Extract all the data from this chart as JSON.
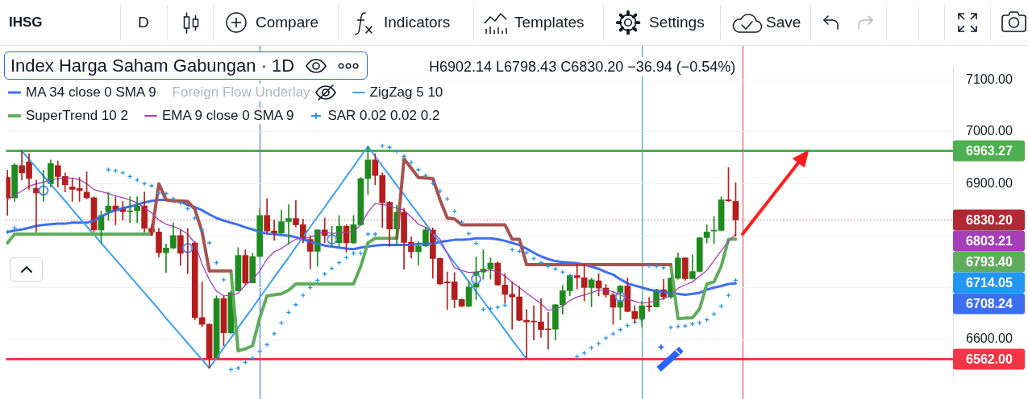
{
  "chart_data": {
    "type": "candlestick",
    "title": "Index Harga Saham Gabungan · 1D",
    "annotations": [
      "IHSG",
      "D",
      "Compare",
      "Indicators",
      "Templates",
      "Settings",
      "Save",
      "H6902.14 L6798.43 C6830.20 −36.94 (−0.54%)",
      "Foreign Flow Underlay",
      "6708.24",
      "6793.40",
      "6803.21",
      "6714.05"
    ],
    "categories": [
      null,
      null,
      null,
      null,
      null,
      null,
      null,
      null,
      null,
      null,
      null,
      null,
      null,
      null,
      null,
      null,
      null,
      null,
      null,
      null,
      null,
      null,
      null,
      null,
      null,
      null,
      null,
      null,
      null,
      null,
      null,
      null,
      null,
      null,
      null,
      null,
      null,
      null,
      null,
      null,
      null,
      null,
      null,
      null,
      null,
      null,
      null,
      null,
      null,
      null,
      null,
      null,
      null,
      null,
      null,
      null,
      null,
      null,
      null,
      null,
      null,
      null,
      null,
      null,
      null,
      null,
      null,
      null,
      null,
      null,
      null,
      null,
      null,
      null,
      null,
      null,
      null,
      null,
      null,
      null,
      null,
      null,
      null,
      null,
      null,
      null,
      null,
      null,
      null,
      null,
      null,
      null,
      null,
      null,
      null,
      null,
      null,
      null,
      null,
      null,
      null,
      null
    ],
    "ohlc": [
      [
        6912,
        6926,
        6839,
        6873
      ],
      [
        6873,
        6939,
        6866,
        6936
      ],
      [
        6935,
        6963,
        6907,
        6921
      ],
      [
        6942,
        6958,
        6889,
        6910
      ],
      [
        6891,
        6907,
        6807,
        6882
      ],
      [
        6882,
        6926,
        6866,
        6891
      ],
      [
        6900,
        6946,
        6894,
        6939
      ],
      [
        6935,
        6944,
        6894,
        6914
      ],
      [
        6914,
        6921,
        6884,
        6898
      ],
      [
        6894,
        6910,
        6866,
        6889
      ],
      [
        6891,
        6912,
        6866,
        6887
      ],
      [
        6884,
        6923,
        6871,
        6873
      ],
      [
        6873,
        6875,
        6807,
        6811
      ],
      [
        6811,
        6848,
        6786,
        6839
      ],
      [
        6846,
        6884,
        6830,
        6857
      ],
      [
        6857,
        6875,
        6821,
        6848
      ],
      [
        6853,
        6866,
        6830,
        6846
      ],
      [
        6846,
        6875,
        6825,
        6848
      ],
      [
        6848,
        6875,
        6825,
        6857
      ],
      [
        6857,
        6884,
        6807,
        6814
      ],
      [
        6814,
        6821,
        6800,
        6807
      ],
      [
        6807,
        6814,
        6759,
        6767
      ],
      [
        6767,
        6784,
        6729,
        6776
      ],
      [
        6776,
        6825,
        6775,
        6800
      ],
      [
        6800,
        6811,
        6743,
        6766
      ],
      [
        6782,
        6814,
        6727,
        6770
      ],
      [
        6786,
        6789,
        6638,
        6642
      ],
      [
        6642,
        6711,
        6624,
        6629
      ],
      [
        6629,
        6631,
        6545,
        6565
      ],
      [
        6565,
        6684,
        6563,
        6679
      ],
      [
        6679,
        6684,
        6588,
        6613
      ],
      [
        6613,
        6693,
        6611,
        6690
      ],
      [
        6694,
        6777,
        6693,
        6762
      ],
      [
        6762,
        6773,
        6706,
        6709
      ],
      [
        6709,
        6766,
        6709,
        6760
      ],
      [
        6760,
        6853,
        6759,
        6839
      ],
      [
        6839,
        6871,
        6805,
        6809
      ],
      [
        6809,
        6830,
        6791,
        6805
      ],
      [
        6805,
        6849,
        6802,
        6827
      ],
      [
        6827,
        6860,
        6784,
        6833
      ],
      [
        6833,
        6868,
        6817,
        6821
      ],
      [
        6821,
        6832,
        6786,
        6793
      ],
      [
        6793,
        6800,
        6736,
        6770
      ],
      [
        6770,
        6812,
        6741,
        6811
      ],
      [
        6811,
        6834,
        6786,
        6800
      ],
      [
        6797,
        6818,
        6779,
        6801
      ],
      [
        6786,
        6839,
        6779,
        6818
      ],
      [
        6818,
        6821,
        6768,
        6786
      ],
      [
        6786,
        6839,
        6785,
        6821
      ],
      [
        6821,
        6912,
        6820,
        6910
      ],
      [
        6910,
        6972,
        6879,
        6946
      ],
      [
        6946,
        6958,
        6898,
        6916
      ],
      [
        6916,
        6921,
        6816,
        6864
      ],
      [
        6864,
        6866,
        6779,
        6813
      ],
      [
        6813,
        6859,
        6782,
        6845
      ],
      [
        6845,
        6853,
        6735,
        6787
      ],
      [
        6787,
        6798,
        6757,
        6769
      ],
      [
        6769,
        6789,
        6743,
        6780
      ],
      [
        6780,
        6816,
        6779,
        6811
      ],
      [
        6811,
        6815,
        6718,
        6756
      ],
      [
        6756,
        6757,
        6705,
        6707
      ],
      [
        6711,
        6730,
        6658,
        6709
      ],
      [
        6711,
        6729,
        6661,
        6677
      ],
      [
        6677,
        6678,
        6663,
        6664
      ],
      [
        6664,
        6713,
        6663,
        6701
      ],
      [
        6701,
        6759,
        6677,
        6730
      ],
      [
        6730,
        6773,
        6716,
        6736
      ],
      [
        6736,
        6757,
        6716,
        6747
      ],
      [
        6747,
        6750,
        6704,
        6705
      ],
      [
        6705,
        6727,
        6670,
        6687
      ],
      [
        6687,
        6711,
        6620,
        6682
      ],
      [
        6682,
        6702,
        6636,
        6637
      ],
      [
        6637,
        6658,
        6562,
        6634
      ],
      [
        6635,
        6665,
        6599,
        6634
      ],
      [
        6634,
        6679,
        6604,
        6619
      ],
      [
        6620,
        6652,
        6581,
        6619
      ],
      [
        6620,
        6668,
        6599,
        6667
      ],
      [
        6667,
        6704,
        6649,
        6694
      ],
      [
        6694,
        6725,
        6684,
        6723
      ],
      [
        6723,
        6745,
        6697,
        6719
      ],
      [
        6719,
        6745,
        6674,
        6700
      ],
      [
        6700,
        6718,
        6663,
        6715
      ],
      [
        6713,
        6727,
        6684,
        6699
      ],
      [
        6699,
        6706,
        6681,
        6686
      ],
      [
        6686,
        6690,
        6629,
        6662
      ],
      [
        6662,
        6704,
        6638,
        6703
      ],
      [
        6703,
        6719,
        6653,
        6654
      ],
      [
        6654,
        6665,
        6633,
        6640
      ],
      [
        6640,
        6674,
        6624,
        6665
      ],
      [
        6665,
        6681,
        6654,
        6663
      ],
      [
        6663,
        6697,
        6662,
        6696
      ],
      [
        6696,
        6716,
        6677,
        6682
      ],
      [
        6682,
        6719,
        6679,
        6718
      ],
      [
        6718,
        6767,
        6716,
        6757
      ],
      [
        6757,
        6758,
        6714,
        6717
      ],
      [
        6717,
        6763,
        6716,
        6731
      ],
      [
        6731,
        6797,
        6730,
        6796
      ],
      [
        6796,
        6821,
        6786,
        6807
      ],
      [
        6809,
        6837,
        6785,
        6810
      ],
      [
        6810,
        6875,
        6809,
        6869
      ],
      [
        6869,
        6931,
        6866,
        6867
      ],
      [
        6866,
        6902.14,
        6798.43,
        6830.2
      ]
    ],
    "colors": [
      "#b41e1e",
      "#1e8b1e",
      "#b41e1e",
      "#b41e1e",
      "#b41e1e",
      "#1e8b1e",
      "#1e8b1e",
      "#b41e1e",
      "#b41e1e",
      "#b41e1e",
      "#b41e1e",
      "#b41e1e",
      "#b41e1e",
      "#1e8b1e",
      "#1e8b1e",
      "#b41e1e",
      "#b41e1e",
      "#1e8b1e",
      "#1e8b1e",
      "#b41e1e",
      "#b41e1e",
      "#b41e1e",
      "#1e8b1e",
      "#1e8b1e",
      "#b41e1e",
      "#b41e1e",
      "#b41e1e",
      "#b41e1e",
      "#b41e1e",
      "#1e8b1e",
      "#b41e1e",
      "#1e8b1e",
      "#1e8b1e",
      "#b41e1e",
      "#1e8b1e",
      "#1e8b1e",
      "#b41e1e",
      "#b41e1e",
      "#1e8b1e",
      "#1e8b1e",
      "#b41e1e",
      "#b41e1e",
      "#b41e1e",
      "#1e8b1e",
      "#b41e1e",
      "#1e8b1e",
      "#1e8b1e",
      "#b41e1e",
      "#1e8b1e",
      "#1e8b1e",
      "#1e8b1e",
      "#b41e1e",
      "#b41e1e",
      "#b41e1e",
      "#1e8b1e",
      "#b41e1e",
      "#b41e1e",
      "#1e8b1e",
      "#1e8b1e",
      "#b41e1e",
      "#b41e1e",
      "#b41e1e",
      "#b41e1e",
      "#b41e1e",
      "#1e8b1e",
      "#1e8b1e",
      "#1e8b1e",
      "#1e8b1e",
      "#b41e1e",
      "#b41e1e",
      "#b41e1e",
      "#b41e1e",
      "#b41e1e",
      "#b41e1e",
      "#b41e1e",
      "#b41e1e",
      "#1e8b1e",
      "#1e8b1e",
      "#1e8b1e",
      "#b41e1e",
      "#b41e1e",
      "#1e8b1e",
      "#b41e1e",
      "#b41e1e",
      "#b41e1e",
      "#1e8b1e",
      "#b41e1e",
      "#b41e1e",
      "#1e8b1e",
      "#b41e1e",
      "#1e8b1e",
      "#b41e1e",
      "#1e8b1e",
      "#1e8b1e",
      "#b41e1e",
      "#1e8b1e",
      "#1e8b1e",
      "#1e8b1e",
      "#1e8b1e",
      "#1e8b1e",
      "#b41e1e",
      "#b41e1e"
    ],
    "series": [
      {
        "name": "MA 34 close 0 SMA 9",
        "type": "line",
        "color": "#3d6ff5",
        "values": [
          6807,
          6810,
          6812,
          6815,
          6819,
          6821,
          6822,
          6823,
          6823,
          6825,
          6825,
          6825,
          6829,
          6837,
          6844,
          6849,
          6853,
          6856,
          6860,
          6864,
          6867,
          6869,
          6869,
          6867,
          6866,
          6859,
          6855,
          6849,
          6841,
          6834,
          6829,
          6825,
          6821,
          6816,
          6812,
          6807,
          6804,
          6803,
          6801,
          6800,
          6797,
          6793,
          6788,
          6785,
          6781,
          6779,
          6777,
          6775,
          6774,
          6777,
          6779,
          6781,
          6782,
          6782,
          6782,
          6782,
          6782,
          6784,
          6784,
          6785,
          6788,
          6790,
          6792,
          6792,
          6793,
          6795,
          6795,
          6795,
          6793,
          6790,
          6786,
          6782,
          6775,
          6767,
          6760,
          6755,
          6751,
          6749,
          6748,
          6747,
          6744,
          6740,
          6736,
          6730,
          6725,
          6716,
          6708,
          6704,
          6700,
          6696,
          6693,
          6692,
          6689,
          6688,
          6686,
          6688,
          6690,
          6696,
          6700,
          6703,
          6707,
          6708.24
        ]
      },
      {
        "name": "ZigZag 5 10",
        "type": "line",
        "color": "#3aa0f0",
        "values": [
          null,
          null,
          6963,
          6947,
          6931,
          6915,
          6899,
          6883,
          6867,
          6850,
          6834,
          6818,
          6802,
          6786,
          6770,
          6754,
          6738,
          6722,
          6706,
          6690,
          6674,
          6658,
          6641,
          6625,
          6609,
          6593,
          6577,
          6561,
          6545,
          6564,
          6584,
          6603,
          6623,
          6642,
          6661,
          6681,
          6700,
          6720,
          6739,
          6758,
          6778,
          6797,
          6817,
          6836,
          6855,
          6875,
          6894,
          6914,
          6933,
          6953,
          6972,
          6953,
          6934,
          6916,
          6897,
          6879,
          6860,
          6842,
          6823,
          6804,
          6786,
          6767,
          6748,
          6730,
          6711,
          6693,
          6674,
          6655,
          6637,
          6618,
          6599,
          6581,
          6562,
          null,
          null,
          null,
          null,
          null,
          null,
          null,
          null,
          null,
          null,
          null,
          null,
          null,
          null,
          null,
          null,
          null,
          null,
          null,
          null,
          null,
          null,
          null,
          null,
          null,
          null,
          null,
          null,
          null
        ]
      },
      {
        "name": "SuperTrend 10 2",
        "type": "line",
        "color": "#5fad5c",
        "values": [
          6786,
          6803,
          6803,
          6803,
          6803,
          6803,
          6803,
          6803,
          6803,
          6803,
          6803,
          6803,
          6803,
          6803,
          6803,
          6803,
          6803,
          6803,
          6803,
          6803,
          6803,
          null,
          null,
          null,
          null,
          null,
          null,
          null,
          null,
          null,
          null,
          6732,
          6578,
          6582,
          6588,
          6642,
          6684,
          6686,
          6688,
          6695,
          6707,
          6707,
          6707,
          6707,
          6707,
          6707,
          6707,
          6707,
          6707,
          6741,
          6786,
          6795,
          6795,
          6795,
          6795,
          null,
          null,
          null,
          null,
          null,
          null,
          null,
          null,
          null,
          null,
          null,
          null,
          null,
          null,
          null,
          null,
          null,
          null,
          null,
          null,
          null,
          null,
          null,
          null,
          null,
          null,
          null,
          null,
          null,
          null,
          null,
          null,
          null,
          null,
          null,
          null,
          null,
          6744,
          6640,
          6641,
          6642,
          6659,
          6707,
          6711,
          6741,
          6793,
          6793.4
        ]
      },
      {
        "type": "line",
        "color": "#a65350",
        "values": [
          null,
          null,
          null,
          null,
          null,
          null,
          null,
          null,
          null,
          null,
          null,
          null,
          null,
          null,
          null,
          null,
          null,
          null,
          null,
          null,
          6803,
          6900,
          6869,
          6867,
          6867,
          6866,
          6851,
          6807,
          6732,
          6732,
          6732,
          6732,
          null,
          null,
          null,
          null,
          null,
          null,
          null,
          null,
          null,
          null,
          null,
          null,
          null,
          null,
          null,
          null,
          null,
          null,
          null,
          null,
          null,
          null,
          6795,
          6948,
          6930,
          6912,
          6911,
          6910,
          6869,
          6834,
          6832,
          6821,
          6821,
          6821,
          6821,
          6821,
          6821,
          6821,
          6793,
          6793,
          6744,
          6744,
          6744,
          6744,
          6744,
          6744,
          6744,
          6744,
          6744,
          6744,
          6744,
          6744,
          6744,
          6744,
          6744,
          6744,
          6744,
          6744,
          6744,
          6744,
          6744,
          null,
          null,
          null,
          null,
          null,
          null,
          null,
          null,
          null
        ]
      },
      {
        "name": "EMA 9 close 0 SMA 9",
        "type": "line",
        "color": "#a53fb9",
        "values": [
          6869,
          6878,
          6886,
          6895,
          6900,
          6903,
          6907,
          6910,
          6911,
          6911,
          6908,
          6900,
          6889,
          6885,
          6881,
          6877,
          6873,
          6869,
          6863,
          6854,
          6844,
          6830,
          6822,
          6818,
          6812,
          6803,
          6786,
          6745,
          6715,
          6693,
          6684,
          6685,
          6689,
          6705,
          6715,
          6732,
          6755,
          6769,
          6775,
          6785,
          6793,
          6796,
          6796,
          6804,
          6807,
          6804,
          6806,
          6807,
          6808,
          6821,
          6845,
          6862,
          6860,
          6858,
          6853,
          6849,
          6836,
          6822,
          6816,
          6806,
          6793,
          6766,
          6738,
          6733,
          6729,
          6730,
          6732,
          6734,
          6730,
          6722,
          6710,
          6700,
          6689,
          6679,
          6669,
          6656,
          6659,
          6664,
          6675,
          6682,
          6686,
          6690,
          6695,
          6695,
          6692,
          6686,
          6679,
          6673,
          6670,
          6671,
          6675,
          6679,
          6684,
          6699,
          6705,
          6711,
          6722,
          6733,
          6752,
          6771,
          6789,
          6803.21
        ]
      },
      {
        "name": "SAR 0.02 0.02 0.2",
        "type": "scatter",
        "marker": "cross",
        "color": "#2196f3",
        "values": [
          6807,
          6815,
          null,
          null,
          null,
          null,
          null,
          null,
          null,
          null,
          null,
          null,
          null,
          null,
          6927,
          6925,
          6921,
          6914,
          6907,
          6900,
          6896,
          6882,
          6881,
          6871,
          6863,
          6852,
          6834,
          6811,
          6786,
          6748,
          6715,
          6542,
          6545,
          6556,
          6564,
          6577,
          6590,
          6611,
          6632,
          6652,
          6667,
          6685,
          6700,
          6714,
          6726,
          6737,
          6748,
          6758,
          6766,
          6766,
          6803,
          6803,
          6973,
          6970,
          6962,
          6953,
          6941,
          6927,
          6916,
          6901,
          6886,
          6871,
          6847,
          6826,
          6804,
          6785,
          6658,
          6659,
          6662,
          6666,
          6773,
          6770,
          6767,
          6756,
          6748,
          6741,
          6736,
          6730,
          6722,
          6567,
          6574,
          6584,
          6592,
          6603,
          6611,
          6619,
          6627,
          6633,
          6638,
          6742,
          6741,
          6738,
          6623,
          6625,
          6626,
          6630,
          6632,
          6638,
          6649,
          6664,
          6685,
          6714.05
        ]
      },
      {
        "type": "scatter",
        "marker": "circle",
        "color": "#5f8df0",
        "values": [
          null,
          null,
          null,
          null,
          null,
          6887,
          null,
          null,
          null,
          null,
          null,
          null,
          null,
          null,
          null,
          null,
          null,
          null,
          null,
          null,
          null,
          null,
          null,
          null,
          null,
          6776,
          null,
          null,
          null,
          null,
          null,
          null,
          null,
          null,
          null,
          null,
          null,
          null,
          null,
          null,
          null,
          null,
          null,
          null,
          null,
          6793,
          null,
          null,
          null,
          null,
          null,
          null,
          null,
          null,
          null,
          null,
          null,
          null,
          null,
          null,
          null,
          null,
          null,
          null,
          null,
          6716,
          null,
          null,
          null,
          null,
          null,
          null,
          null,
          null,
          null,
          null,
          null,
          null,
          null,
          null,
          null,
          null,
          null,
          null,
          null,
          6682,
          null,
          null,
          null,
          null,
          null,
          null,
          null,
          null,
          null,
          null,
          null,
          null,
          null,
          null,
          null,
          null
        ]
      }
    ],
    "ref_lines": [
      {
        "axis": "y",
        "value": 6963.27,
        "label": "6963.27",
        "color": "#4caf50"
      },
      {
        "axis": "y",
        "value": 6562,
        "label": "6562.00",
        "color": "#f23645"
      },
      {
        "axis": "y",
        "value": 6830.2,
        "label": "6830.20",
        "color": "#b22833",
        "line_style": "dotted"
      }
    ],
    "ylim": [
      6525,
      7126
    ],
    "yticks": [
      {
        "value": 6600,
        "label": "6600.00"
      },
      {
        "value": 6700,
        "label": null
      },
      {
        "value": 6800,
        "label": null
      },
      {
        "value": 6900,
        "label": "6900.00"
      },
      {
        "value": 7000,
        "label": "7000.00"
      },
      {
        "value": 7100,
        "label": "7100.00"
      }
    ],
    "tick_labels": "y",
    "grid": "y",
    "legend": "top left"
  }
}
